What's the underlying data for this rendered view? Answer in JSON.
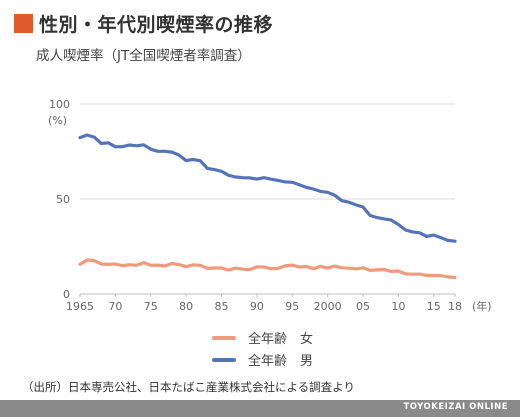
{
  "title": "性別・年代別喫煙率の推移",
  "subtitle": "成人喫煙率（JT全国喫煙者率調査）",
  "colors": {
    "accent": "#e05a2b",
    "female": "#ef9a7a",
    "male": "#5574b8"
  },
  "source": "（出所）日本専売公社、日本たばこ産業株式会社による調査より",
  "footer": "TOYOKEIZAI ONLINE",
  "chart_data": {
    "type": "line",
    "y_unit": "(%)",
    "x_unit": "(年)",
    "ylim": [
      0,
      100
    ],
    "xlim": [
      1965,
      2018
    ],
    "y_ticks": [
      {
        "value": 0,
        "label": "0"
      },
      {
        "value": 50,
        "label": "50"
      },
      {
        "value": 100,
        "label": "100"
      }
    ],
    "x_ticks": [
      {
        "value": 1965,
        "label": "1965"
      },
      {
        "value": 1970,
        "label": "70"
      },
      {
        "value": 1975,
        "label": "75"
      },
      {
        "value": 1980,
        "label": "80"
      },
      {
        "value": 1985,
        "label": "85"
      },
      {
        "value": 1990,
        "label": "90"
      },
      {
        "value": 1995,
        "label": "95"
      },
      {
        "value": 2000,
        "label": "2000"
      },
      {
        "value": 2005,
        "label": "05"
      },
      {
        "value": 2010,
        "label": "10"
      },
      {
        "value": 2015,
        "label": "15"
      },
      {
        "value": 2018,
        "label": "18"
      }
    ],
    "grid": true,
    "legend": "bottom",
    "x": [
      1965,
      1966,
      1967,
      1968,
      1969,
      1970,
      1971,
      1972,
      1973,
      1974,
      1975,
      1976,
      1977,
      1978,
      1979,
      1980,
      1981,
      1982,
      1983,
      1984,
      1985,
      1986,
      1987,
      1988,
      1989,
      1990,
      1991,
      1992,
      1993,
      1994,
      1995,
      1996,
      1997,
      1998,
      1999,
      2000,
      2001,
      2002,
      2003,
      2004,
      2005,
      2006,
      2007,
      2008,
      2009,
      2010,
      2011,
      2012,
      2013,
      2014,
      2015,
      2016,
      2017,
      2018
    ],
    "series": [
      {
        "name": "全年齢　女",
        "color": "#ef9a7a",
        "values": [
          15.7,
          17.9,
          17.6,
          15.8,
          15.6,
          15.8,
          14.9,
          15.4,
          15.1,
          16.5,
          15.1,
          15.2,
          14.8,
          16.1,
          15.4,
          14.4,
          15.3,
          15.1,
          13.5,
          13.7,
          13.7,
          12.6,
          13.6,
          13.1,
          12.8,
          14.3,
          14.2,
          13.3,
          13.5,
          14.8,
          15.2,
          14.2,
          14.5,
          13.3,
          14.5,
          13.7,
          14.7,
          13.8,
          13.6,
          13.2,
          13.8,
          12.4,
          12.7,
          12.9,
          11.9,
          12.1,
          10.6,
          10.4,
          10.5,
          9.8,
          9.7,
          9.7,
          9.0,
          8.7
        ]
      },
      {
        "name": "全年齢　男",
        "color": "#5574b8",
        "values": [
          82.3,
          83.7,
          82.6,
          79.2,
          79.6,
          77.5,
          77.6,
          78.4,
          78.0,
          78.5,
          76.2,
          75.1,
          75.1,
          74.7,
          73.1,
          70.2,
          70.8,
          70.1,
          66.1,
          65.5,
          64.6,
          62.5,
          61.6,
          61.2,
          61.1,
          60.5,
          61.2,
          60.4,
          59.8,
          59.0,
          58.8,
          57.5,
          56.1,
          55.2,
          54.0,
          53.5,
          52.0,
          49.1,
          48.3,
          46.9,
          45.8,
          41.3,
          40.2,
          39.5,
          38.9,
          36.6,
          33.7,
          32.7,
          32.2,
          30.3,
          31.0,
          29.7,
          28.2,
          27.8
        ]
      }
    ]
  }
}
